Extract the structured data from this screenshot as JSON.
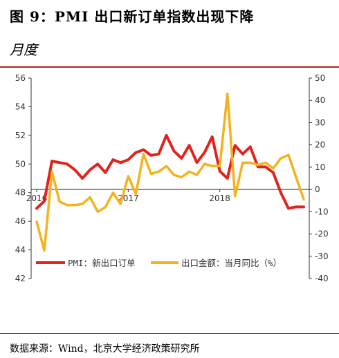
{
  "title": "图 9：PMI 出口新订单指数出现下降",
  "subtitle": "月度",
  "source": "数据来源：Wind，北京大学经济政策研究所",
  "chart_data": {
    "type": "line",
    "x": [
      "2016-01",
      "2016-02",
      "2016-03",
      "2016-04",
      "2016-05",
      "2016-06",
      "2016-07",
      "2016-08",
      "2016-09",
      "2016-10",
      "2016-11",
      "2016-12",
      "2017-01",
      "2017-02",
      "2017-03",
      "2017-04",
      "2017-05",
      "2017-06",
      "2017-07",
      "2017-08",
      "2017-09",
      "2017-10",
      "2017-11",
      "2017-12",
      "2018-01",
      "2018-02",
      "2018-03",
      "2018-04",
      "2018-05",
      "2018-06",
      "2018-07",
      "2018-08",
      "2018-09",
      "2018-10",
      "2018-11",
      "2018-12"
    ],
    "x_tick_labels": [
      "2016",
      "2017",
      "2018"
    ],
    "y_left": {
      "lim": [
        42,
        56
      ],
      "ticks": [
        "42",
        "44",
        "46",
        "48",
        "50",
        "52",
        "54",
        "56"
      ]
    },
    "y_right": {
      "lim": [
        -40,
        50
      ],
      "ticks": [
        "-40",
        "-30",
        "-20",
        "-10",
        "0",
        "10",
        "20",
        "30",
        "40",
        "50"
      ]
    },
    "series": [
      {
        "name": "PMI：新出口订单",
        "axis": "left",
        "color": "#e3221c",
        "values": [
          46.9,
          47.4,
          50.2,
          50.1,
          50.0,
          49.6,
          49.0,
          49.6,
          50.0,
          49.4,
          50.3,
          50.1,
          50.3,
          50.8,
          51.0,
          50.6,
          50.7,
          52.0,
          50.9,
          50.4,
          51.3,
          50.1,
          50.8,
          51.9,
          49.5,
          49.0,
          51.3,
          50.7,
          51.2,
          49.8,
          49.8,
          49.4,
          48.0,
          46.9,
          47.0,
          47.0
        ]
      },
      {
        "name": "出口金额：当月同比（%）",
        "axis": "right",
        "color": "#f5b21d",
        "values": [
          -14.5,
          -27.5,
          8.0,
          -5.5,
          -7.0,
          -7.0,
          -6.5,
          -3.5,
          -10.0,
          -8.0,
          -1.5,
          -6.5,
          6.0,
          -2.0,
          16.0,
          7.0,
          8.0,
          10.5,
          6.5,
          5.5,
          8.0,
          6.5,
          11.5,
          10.5,
          10.5,
          43.0,
          -3.0,
          12.0,
          12.0,
          11.0,
          12.0,
          9.5,
          14.0,
          15.5,
          5.5,
          -4.5
        ]
      }
    ]
  }
}
